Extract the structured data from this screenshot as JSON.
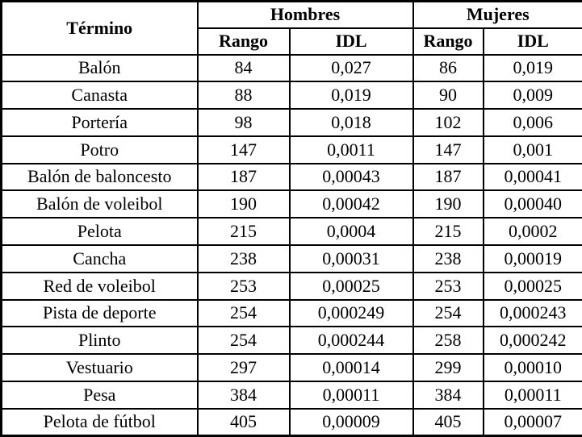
{
  "table": {
    "term_header": "Término",
    "groups": [
      {
        "label": "Hombres"
      },
      {
        "label": "Mujeres"
      }
    ],
    "sub_headers": [
      "Rango",
      "IDL",
      "Rango",
      "IDL"
    ],
    "rows": [
      [
        "Balón",
        "84",
        "0,027",
        "86",
        "0,019"
      ],
      [
        "Canasta",
        "88",
        "0,019",
        "90",
        "0,009"
      ],
      [
        "Portería",
        "98",
        "0,018",
        "102",
        "0,006"
      ],
      [
        "Potro",
        "147",
        "0,0011",
        "147",
        "0,001"
      ],
      [
        "Balón de baloncesto",
        "187",
        "0,00043",
        "187",
        "0,00041"
      ],
      [
        "Balón de voleibol",
        "190",
        "0,00042",
        "190",
        "0,00040"
      ],
      [
        "Pelota",
        "215",
        "0,0004",
        "215",
        "0,0002"
      ],
      [
        "Cancha",
        "238",
        "0,00031",
        "238",
        "0,00019"
      ],
      [
        "Red de voleibol",
        "253",
        "0,00025",
        "253",
        "0,00025"
      ],
      [
        "Pista de deporte",
        "254",
        "0,000249",
        "254",
        "0,000243"
      ],
      [
        "Plinto",
        "254",
        "0,000244",
        "258",
        "0,000242"
      ],
      [
        "Vestuario",
        "297",
        "0,00014",
        "299",
        "0,00010"
      ],
      [
        "Pesa",
        "384",
        "0,00011",
        "384",
        "0,00011"
      ],
      [
        "Pelota de fútbol",
        "405",
        "0,00009",
        "405",
        "0,00007"
      ]
    ],
    "colors": {
      "border": "#000000",
      "text": "#000000",
      "background": "#ffffff"
    }
  }
}
